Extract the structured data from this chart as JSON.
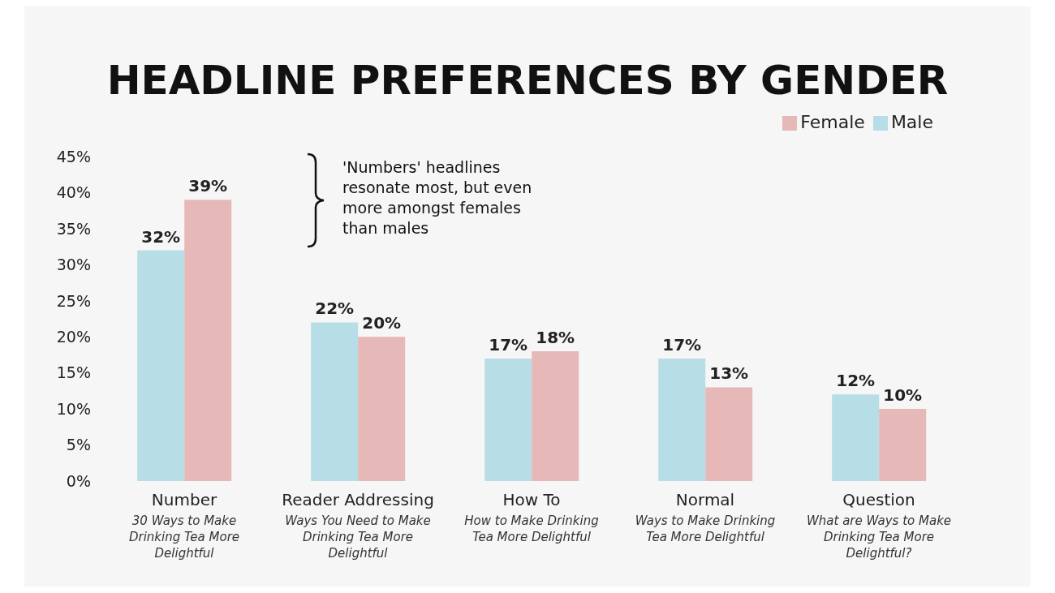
{
  "chart_data": {
    "type": "bar",
    "title": "HEADLINE PREFERENCES BY GENDER",
    "categories": [
      "Number",
      "Reader Addressing",
      "How To",
      "Normal",
      "Question"
    ],
    "series": [
      {
        "name": "Male",
        "color": "#b7dde6",
        "values": [
          32,
          22,
          17,
          17,
          12
        ],
        "value_labels": [
          "32%",
          "22%",
          "17%",
          "17%",
          "12%"
        ]
      },
      {
        "name": "Female",
        "color": "#e6b8b8",
        "values": [
          39,
          20,
          18,
          13,
          10
        ],
        "value_labels": [
          "39%",
          "20%",
          "18%",
          "13%",
          "10%"
        ]
      }
    ],
    "ylim": [
      0,
      45
    ],
    "yticks": [
      {
        "value": 0,
        "label": "0%"
      },
      {
        "value": 5,
        "label": "5%"
      },
      {
        "value": 10,
        "label": "10%"
      },
      {
        "value": 15,
        "label": "15%"
      },
      {
        "value": 20,
        "label": "20%"
      },
      {
        "value": 25,
        "label": "25%"
      },
      {
        "value": 30,
        "label": "30%"
      },
      {
        "value": 35,
        "label": "35%"
      },
      {
        "value": 40,
        "label": "40%"
      },
      {
        "value": 45,
        "label": "45%"
      }
    ],
    "grid": false,
    "legend": "top right",
    "annotations": [
      "'Numbers' headlines resonate most, but even more amongst females than males",
      "30 Ways to Make Drinking Tea More Delightful",
      "Ways You Need to Make Drinking Tea More Delightful",
      "How to Make Drinking Tea More Delightful",
      "Ways to Make Drinking Tea More Delightful",
      "What are Ways to Make Drinking Tea More Delightful?"
    ]
  }
}
